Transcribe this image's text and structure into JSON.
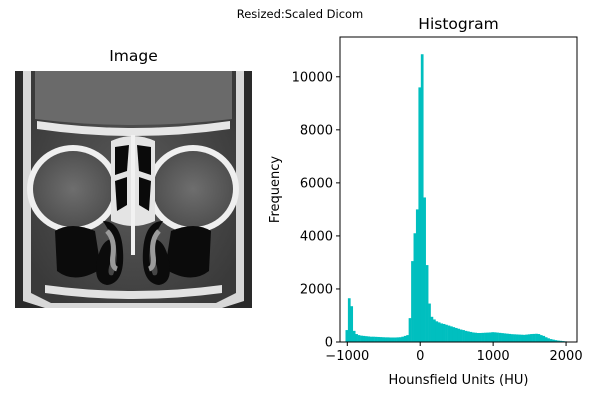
{
  "figure": {
    "suptitle": "Resized:Scaled Dicom"
  },
  "image_panel": {
    "title": "Image"
  },
  "chart_data": {
    "type": "bar",
    "title": "Histogram",
    "xlabel": "Hounsfield Units (HU)",
    "ylabel": "Frequency",
    "xlim": [
      -1100,
      2150
    ],
    "ylim": [
      0,
      11500
    ],
    "xticks": [
      -1000,
      0,
      1000,
      2000
    ],
    "yticks": [
      0,
      2000,
      4000,
      6000,
      8000,
      10000
    ],
    "bar_color": "#00bfbf",
    "bin_width": 33.3,
    "x": [
      -1008,
      -975,
      -942,
      -908,
      -875,
      -842,
      -808,
      -775,
      -742,
      -708,
      -675,
      -642,
      -608,
      -575,
      -542,
      -508,
      -475,
      -442,
      -408,
      -375,
      -342,
      -308,
      -275,
      -242,
      -208,
      -175,
      -142,
      -108,
      -75,
      -42,
      -8,
      25,
      58,
      92,
      125,
      158,
      192,
      225,
      258,
      292,
      325,
      358,
      392,
      425,
      458,
      492,
      525,
      558,
      592,
      625,
      658,
      692,
      725,
      758,
      792,
      825,
      858,
      892,
      925,
      958,
      992,
      1025,
      1058,
      1092,
      1125,
      1158,
      1192,
      1225,
      1258,
      1292,
      1325,
      1358,
      1392,
      1425,
      1458,
      1492,
      1525,
      1558,
      1592,
      1625,
      1658,
      1692,
      1725,
      1758,
      1792,
      1825,
      1858,
      1892,
      1925,
      1958,
      1992
    ],
    "values": [
      450,
      1650,
      1350,
      420,
      300,
      260,
      240,
      230,
      220,
      210,
      200,
      200,
      195,
      190,
      185,
      180,
      175,
      175,
      170,
      170,
      170,
      175,
      180,
      200,
      230,
      260,
      900,
      3050,
      4100,
      5000,
      9600,
      10850,
      5450,
      2900,
      1450,
      950,
      850,
      780,
      740,
      700,
      680,
      650,
      620,
      590,
      560,
      530,
      500,
      470,
      450,
      420,
      400,
      380,
      360,
      350,
      340,
      340,
      345,
      350,
      355,
      360,
      370,
      365,
      355,
      345,
      335,
      325,
      315,
      305,
      295,
      290,
      285,
      280,
      275,
      270,
      280,
      290,
      300,
      305,
      310,
      300,
      260,
      230,
      180,
      140,
      110,
      90,
      70,
      55,
      45,
      35,
      25
    ]
  }
}
